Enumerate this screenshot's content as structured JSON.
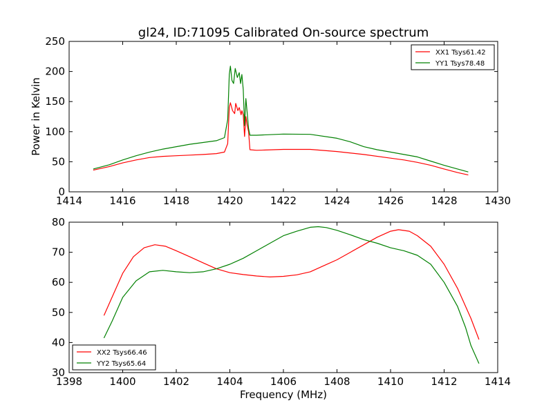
{
  "title": "gl24, ID:71095 Calibrated On-source spectrum",
  "colors": {
    "red": "#ff0000",
    "green": "#008000"
  },
  "chart_data": [
    {
      "type": "line",
      "title": "gl24, ID:71095 Calibrated On-source spectrum",
      "xlabel": "",
      "ylabel": "Power in Kelvin",
      "xlim": [
        1414,
        1430
      ],
      "ylim": [
        0,
        250
      ],
      "xticks": [
        1414,
        1416,
        1418,
        1420,
        1422,
        1424,
        1426,
        1428,
        1430
      ],
      "yticks": [
        0,
        50,
        100,
        150,
        200,
        250
      ],
      "legend_position": "top-right",
      "series": [
        {
          "name": "XX1 Tsys61.42",
          "color": "#ff0000",
          "points": [
            [
              1414.9,
              36
            ],
            [
              1415.5,
              42
            ],
            [
              1416,
              48
            ],
            [
              1416.5,
              53
            ],
            [
              1417,
              57
            ],
            [
              1417.5,
              59
            ],
            [
              1418,
              60
            ],
            [
              1418.5,
              61
            ],
            [
              1419,
              62
            ],
            [
              1419.5,
              63.5
            ],
            [
              1419.8,
              66
            ],
            [
              1419.92,
              80
            ],
            [
              1419.98,
              140
            ],
            [
              1420.02,
              148
            ],
            [
              1420.1,
              135
            ],
            [
              1420.18,
              130
            ],
            [
              1420.22,
              147
            ],
            [
              1420.3,
              135
            ],
            [
              1420.35,
              140
            ],
            [
              1420.42,
              128
            ],
            [
              1420.45,
              135
            ],
            [
              1420.5,
              128
            ],
            [
              1420.55,
              92
            ],
            [
              1420.6,
              125
            ],
            [
              1420.65,
              110
            ],
            [
              1420.7,
              100
            ],
            [
              1420.75,
              70
            ],
            [
              1421,
              69
            ],
            [
              1422,
              70.5
            ],
            [
              1423,
              70.5
            ],
            [
              1424,
              67
            ],
            [
              1425,
              62
            ],
            [
              1426,
              56
            ],
            [
              1426.5,
              53
            ],
            [
              1427,
              49
            ],
            [
              1427.5,
              44
            ],
            [
              1428,
              38
            ],
            [
              1428.5,
              32
            ],
            [
              1428.9,
              28
            ]
          ]
        },
        {
          "name": "YY1 Tsys78.48",
          "color": "#008000",
          "points": [
            [
              1414.9,
              38
            ],
            [
              1415.5,
              45
            ],
            [
              1416,
              53
            ],
            [
              1416.5,
              60
            ],
            [
              1417,
              66
            ],
            [
              1417.5,
              71
            ],
            [
              1418,
              75
            ],
            [
              1418.5,
              79
            ],
            [
              1419,
              82
            ],
            [
              1419.5,
              85
            ],
            [
              1419.8,
              90
            ],
            [
              1419.92,
              120
            ],
            [
              1419.98,
              195
            ],
            [
              1420.02,
              209
            ],
            [
              1420.08,
              185
            ],
            [
              1420.14,
              180
            ],
            [
              1420.2,
              205
            ],
            [
              1420.28,
              190
            ],
            [
              1420.35,
              198
            ],
            [
              1420.4,
              180
            ],
            [
              1420.45,
              195
            ],
            [
              1420.5,
              170
            ],
            [
              1420.55,
              110
            ],
            [
              1420.6,
              155
            ],
            [
              1420.65,
              130
            ],
            [
              1420.7,
              105
            ],
            [
              1420.75,
              94
            ],
            [
              1421,
              94
            ],
            [
              1422,
              96
            ],
            [
              1423,
              95.5
            ],
            [
              1424,
              89
            ],
            [
              1424.5,
              83
            ],
            [
              1425,
              75
            ],
            [
              1425.5,
              70
            ],
            [
              1426,
              66
            ],
            [
              1426.5,
              62
            ],
            [
              1427,
              58
            ],
            [
              1427.5,
              51
            ],
            [
              1428,
              44
            ],
            [
              1428.5,
              38
            ],
            [
              1428.9,
              33
            ]
          ]
        }
      ]
    },
    {
      "type": "line",
      "title": "",
      "xlabel": "Frequency (MHz)",
      "ylabel": "",
      "xlim": [
        1398,
        1414
      ],
      "ylim": [
        30,
        80
      ],
      "xticks": [
        1398,
        1400,
        1402,
        1404,
        1406,
        1408,
        1410,
        1412,
        1414
      ],
      "yticks": [
        30,
        40,
        50,
        60,
        70,
        80
      ],
      "legend_position": "bottom-left",
      "series": [
        {
          "name": "XX2 Tsys66.46",
          "color": "#ff0000",
          "points": [
            [
              1399.3,
              49
            ],
            [
              1399.6,
              55
            ],
            [
              1400,
              63
            ],
            [
              1400.4,
              68.5
            ],
            [
              1400.8,
              71.5
            ],
            [
              1401.2,
              72.5
            ],
            [
              1401.6,
              72
            ],
            [
              1402,
              70.5
            ],
            [
              1402.5,
              68.5
            ],
            [
              1403,
              66.5
            ],
            [
              1403.5,
              64.5
            ],
            [
              1404,
              63.2
            ],
            [
              1404.5,
              62.6
            ],
            [
              1405,
              62.1
            ],
            [
              1405.5,
              61.8
            ],
            [
              1406,
              62
            ],
            [
              1406.5,
              62.5
            ],
            [
              1407,
              63.5
            ],
            [
              1407.5,
              65.5
            ],
            [
              1408,
              67.5
            ],
            [
              1408.5,
              70
            ],
            [
              1409,
              72.5
            ],
            [
              1409.5,
              75
            ],
            [
              1410,
              77
            ],
            [
              1410.3,
              77.5
            ],
            [
              1410.7,
              77
            ],
            [
              1411,
              75.5
            ],
            [
              1411.5,
              72
            ],
            [
              1412,
              66
            ],
            [
              1412.5,
              58
            ],
            [
              1413,
              48
            ],
            [
              1413.3,
              41
            ]
          ]
        },
        {
          "name": "YY2 Tsys65.64",
          "color": "#008000",
          "points": [
            [
              1399.3,
              41.5
            ],
            [
              1399.6,
              47
            ],
            [
              1400,
              55
            ],
            [
              1400.5,
              60.5
            ],
            [
              1401,
              63.5
            ],
            [
              1401.5,
              64
            ],
            [
              1402,
              63.5
            ],
            [
              1402.5,
              63.2
            ],
            [
              1403,
              63.5
            ],
            [
              1403.5,
              64.5
            ],
            [
              1404,
              66
            ],
            [
              1404.5,
              68
            ],
            [
              1405,
              70.5
            ],
            [
              1405.5,
              73
            ],
            [
              1406,
              75.5
            ],
            [
              1406.5,
              77
            ],
            [
              1407,
              78.3
            ],
            [
              1407.3,
              78.5
            ],
            [
              1407.6,
              78.2
            ],
            [
              1408,
              77.3
            ],
            [
              1408.5,
              75.8
            ],
            [
              1409,
              74.2
            ],
            [
              1409.5,
              73
            ],
            [
              1410,
              71.5
            ],
            [
              1410.5,
              70.5
            ],
            [
              1411,
              69
            ],
            [
              1411.5,
              66
            ],
            [
              1412,
              60
            ],
            [
              1412.5,
              52
            ],
            [
              1412.8,
              45
            ],
            [
              1413,
              39
            ],
            [
              1413.3,
              33
            ]
          ]
        }
      ]
    }
  ]
}
